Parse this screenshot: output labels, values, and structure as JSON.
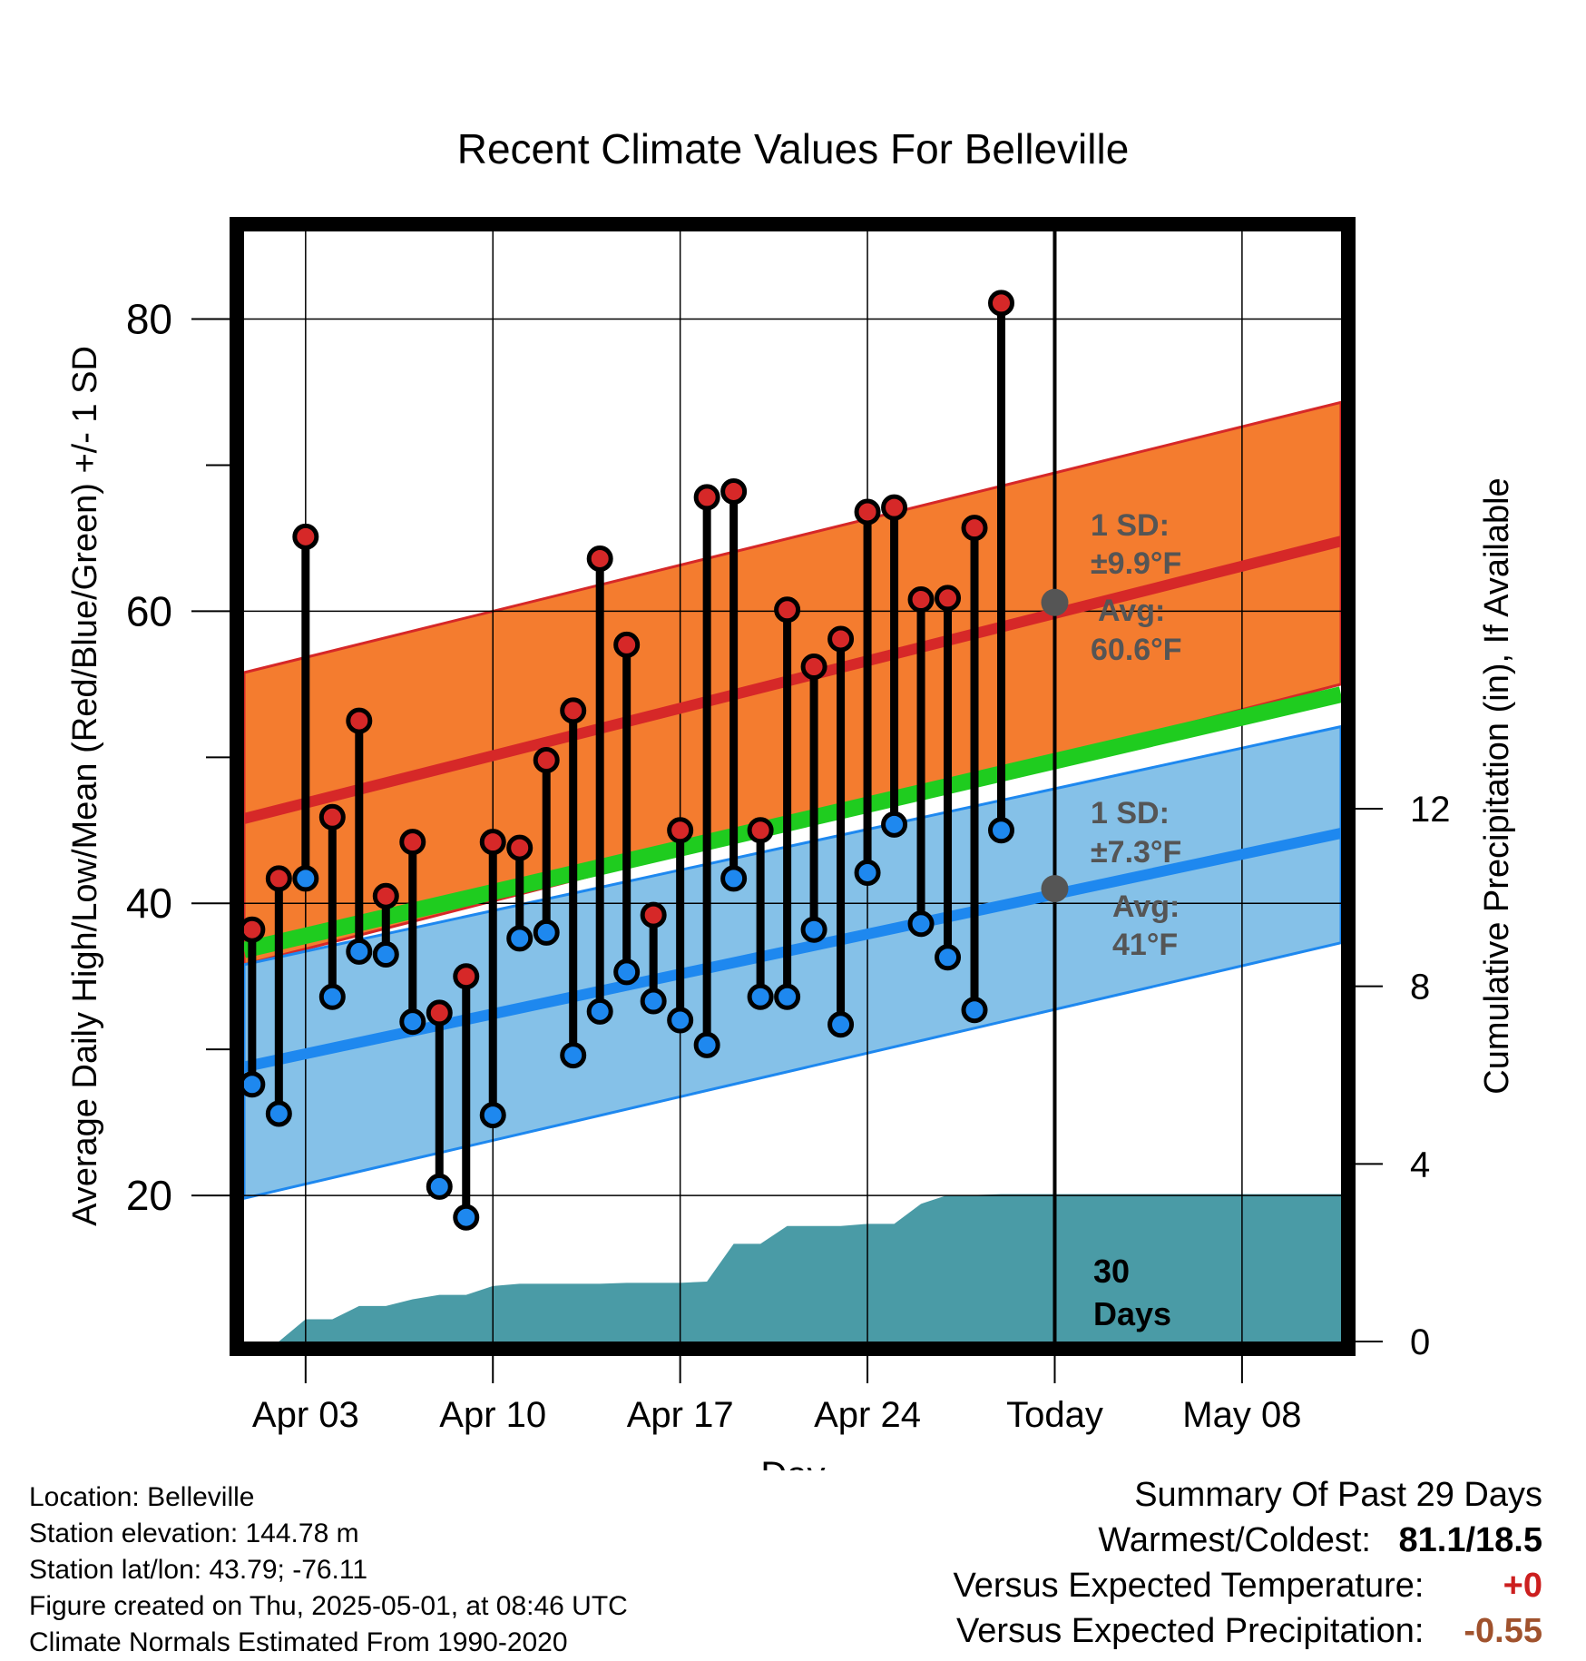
{
  "chart_data": {
    "type": "line",
    "title": "Recent Climate Values For Belleville",
    "xlabel": "Day",
    "ylabel_left": "Average Daily High/Low/Mean (Red/Blue/Green) +/- 1 SD",
    "ylabel_right": "Cumulative Precipitation (in), If Available",
    "ylim_left": [
      10,
      86
    ],
    "ylim_right": [
      0,
      25
    ],
    "x_tick_labels": [
      "Apr 03",
      "Apr 10",
      "Apr 17",
      "Apr 24",
      "Today",
      "May 08"
    ],
    "y_left_ticks": [
      "20",
      "40",
      "60",
      "80"
    ],
    "y_right_ticks": [
      "0",
      "4",
      "8",
      "12"
    ],
    "today_marker_label_line1": "30",
    "today_marker_label_line2": "Days",
    "normals": {
      "high_mean_start": 45.8,
      "high_mean_end": 64.8,
      "high_upper_start": 55.8,
      "high_upper_end": 74.3,
      "high_lower_start": 35.8,
      "high_lower_end": 55.0,
      "low_mean_start": 28.8,
      "low_mean_end": 44.8,
      "low_upper_start": 35.8,
      "low_upper_end": 52.1,
      "low_lower_start": 19.8,
      "low_lower_end": 37.3,
      "mean_start": 36.8,
      "mean_end": 54.3
    },
    "high_annotation": {
      "line1": "1 SD:",
      "line2": "±9.9°F",
      "line3": "Avg:",
      "line4": "60.6°F",
      "avg_value": 60.6
    },
    "low_annotation": {
      "line1": "1 SD:",
      "line2": "±7.3°F",
      "line3": "Avg:",
      "line4": "41°F",
      "avg_value": 41.0
    },
    "series": [
      {
        "name": "High",
        "values": [
          38.2,
          41.7,
          65.1,
          45.9,
          52.5,
          40.5,
          44.2,
          32.5,
          35.0,
          44.2,
          43.8,
          49.8,
          53.2,
          63.6,
          57.7,
          39.2,
          45.0,
          67.8,
          68.2,
          45.0,
          60.1,
          56.2,
          58.1,
          66.8,
          67.1,
          60.8,
          60.9,
          65.7,
          81.1
        ]
      },
      {
        "name": "Low",
        "values": [
          27.6,
          25.6,
          41.7,
          33.6,
          36.7,
          36.5,
          31.9,
          20.6,
          18.5,
          25.5,
          37.6,
          38.0,
          29.6,
          32.6,
          35.3,
          33.3,
          32.0,
          30.3,
          41.7,
          33.6,
          33.6,
          38.2,
          31.7,
          42.1,
          45.4,
          38.6,
          36.3,
          32.7,
          45.0
        ]
      },
      {
        "name": "Precipitation",
        "values": [
          0.0,
          0.0,
          0.5,
          0.5,
          0.8,
          0.8,
          0.95,
          1.05,
          1.05,
          1.25,
          1.3,
          1.3,
          1.3,
          1.3,
          1.32,
          1.32,
          1.32,
          1.35,
          2.2,
          2.2,
          2.6,
          2.6,
          2.6,
          2.65,
          2.65,
          3.1,
          3.3,
          3.3,
          3.32,
          3.32
        ]
      }
    ]
  },
  "footer": {
    "location": "Location: Belleville",
    "elevation": "Station elevation: 144.78 m",
    "latlon": "Station lat/lon: 43.79; -76.11",
    "created": "Figure created on Thu, 2025-05-01, at 08:46 UTC",
    "normals": "Climate Normals Estimated From 1990-2020"
  },
  "summary": {
    "title": "Summary Of Past 29 Days",
    "warmest_label": "Warmest/Coldest:",
    "warmest_value": "81.1/18.5",
    "temp_label": "Versus Expected Temperature:",
    "temp_value": "+0",
    "precip_label": "Versus Expected Precipitation:",
    "precip_value": "-0.55",
    "temp_color": "#cc1f1f",
    "precip_color": "#a0522d"
  }
}
